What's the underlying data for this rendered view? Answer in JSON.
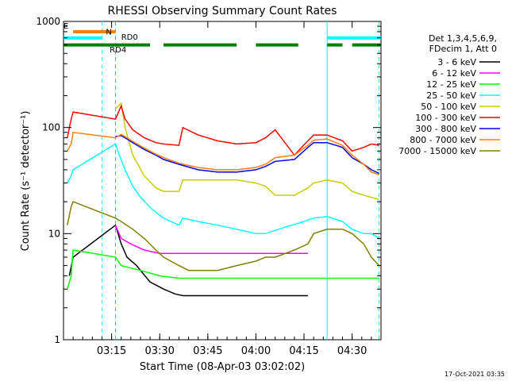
{
  "chart_data": {
    "type": "line",
    "title": "RHESSI Observing Summary Count Rates",
    "xlabel": "Start Time (08-Apr-03 03:02:02)",
    "ylabel": "Count Rate (s⁻¹ detector⁻¹)",
    "yscale": "log",
    "ylim": [
      1,
      1000
    ],
    "xlim_minutes": [
      3.0,
      4.65
    ],
    "x_ticks": [
      {
        "label": "03:15",
        "value": 3.25
      },
      {
        "label": "03:30",
        "value": 3.5
      },
      {
        "label": "03:45",
        "value": 3.75
      },
      {
        "label": "04:00",
        "value": 4.0
      },
      {
        "label": "04:15",
        "value": 4.25
      },
      {
        "label": "04:30",
        "value": 4.5
      }
    ],
    "y_ticks": [
      {
        "label": "1",
        "value": 1
      },
      {
        "label": "10",
        "value": 10
      },
      {
        "label": "100",
        "value": 100
      },
      {
        "label": "1000",
        "value": 1000
      }
    ],
    "legend_header": [
      "Det 1,3,4,5,6,9,",
      "FDecim 1, Att 0"
    ],
    "legend_position": "right",
    "series": [
      {
        "name": "3 - 6 keV",
        "color": "#000000",
        "x": [
          3.03,
          3.05,
          3.27,
          3.3,
          3.33,
          3.38,
          3.45,
          3.52,
          3.58,
          3.62,
          3.7,
          3.72,
          3.8,
          3.86,
          3.92,
          4.0,
          4.08,
          4.15,
          4.2,
          4.27
        ],
        "values": [
          4,
          6,
          12,
          8,
          6,
          5,
          3.5,
          3.0,
          2.7,
          2.6,
          2.6,
          2.6,
          2.6,
          2.6,
          2.6,
          2.6,
          2.6,
          2.6,
          2.6,
          2.6
        ]
      },
      {
        "name": "6 - 12 keV",
        "color": "#ff00ff",
        "x": [
          3.27,
          3.3,
          3.35,
          3.42,
          3.5,
          3.58,
          3.65,
          3.72,
          3.8,
          3.9,
          4.0,
          4.1,
          4.2,
          4.27
        ],
        "values": [
          12,
          9,
          8,
          7,
          6.5,
          6.5,
          6.5,
          6.5,
          6.5,
          6.5,
          6.5,
          6.5,
          6.5,
          6.5
        ]
      },
      {
        "name": "12 - 25 keV",
        "color": "#00ff00",
        "x": [
          3.02,
          3.04,
          3.05,
          3.27,
          3.3,
          3.4,
          3.5,
          3.6,
          3.7,
          3.8,
          3.9,
          4.0,
          4.1,
          4.2,
          4.3,
          4.4,
          4.45,
          4.47,
          4.5,
          4.52,
          4.56,
          4.6,
          4.64
        ],
        "values": [
          3,
          4,
          7,
          6,
          5,
          4.5,
          4,
          3.8,
          3.8,
          3.8,
          3.8,
          3.8,
          3.8,
          3.8,
          3.8,
          3.8,
          3.8,
          3.8,
          3.8,
          3.8,
          3.8,
          3.8,
          3.8
        ]
      },
      {
        "name": "25 - 50 keV",
        "color": "#00ffff",
        "x": [
          3.02,
          3.04,
          3.05,
          3.27,
          3.29,
          3.32,
          3.36,
          3.4,
          3.46,
          3.52,
          3.6,
          3.62,
          3.7,
          3.8,
          3.9,
          4.0,
          4.05,
          4.15,
          4.22,
          4.3,
          4.37,
          4.45,
          4.5,
          4.56,
          4.6,
          4.64
        ],
        "values": [
          30,
          35,
          40,
          70,
          55,
          40,
          28,
          22,
          17,
          14,
          12,
          14,
          13,
          12,
          11,
          10,
          10,
          11.5,
          12.5,
          14,
          14.5,
          13,
          11,
          10,
          10,
          9
        ]
      },
      {
        "name": "50 - 100 keV",
        "color": "#cccc00",
        "x": [
          3.27,
          3.3,
          3.32,
          3.36,
          3.42,
          3.48,
          3.52,
          3.6,
          3.62,
          3.7,
          3.8,
          3.9,
          4.0,
          4.05,
          4.1,
          4.2,
          4.27,
          4.3,
          4.37,
          4.45,
          4.5,
          4.56,
          4.6,
          4.64
        ],
        "values": [
          150,
          170,
          100,
          55,
          35,
          27,
          25,
          25,
          32,
          32,
          32,
          32,
          30,
          28,
          23,
          23,
          27,
          30,
          32,
          30,
          25,
          23,
          22,
          21
        ]
      },
      {
        "name": "100 - 300 keV",
        "color": "#ff0000",
        "x": [
          3.02,
          3.04,
          3.05,
          3.27,
          3.3,
          3.32,
          3.36,
          3.42,
          3.48,
          3.52,
          3.6,
          3.62,
          3.7,
          3.8,
          3.9,
          4.0,
          4.05,
          4.1,
          4.2,
          4.27,
          4.3,
          4.37,
          4.45,
          4.5,
          4.56,
          4.6,
          4.64
        ],
        "values": [
          80,
          120,
          140,
          120,
          160,
          120,
          95,
          80,
          72,
          70,
          68,
          100,
          85,
          75,
          70,
          72,
          80,
          95,
          55,
          75,
          85,
          85,
          75,
          60,
          65,
          70,
          68
        ]
      },
      {
        "name": "300 - 800 keV",
        "color": "#0000ff",
        "x": [
          3.27,
          3.3,
          3.32,
          3.36,
          3.42,
          3.48,
          3.52,
          3.6,
          3.7,
          3.8,
          3.9,
          4.0,
          4.05,
          4.1,
          4.2,
          4.27,
          4.3,
          4.37,
          4.45,
          4.5,
          4.56,
          4.6,
          4.64
        ],
        "values": [
          82,
          84,
          80,
          72,
          62,
          55,
          50,
          45,
          40,
          38,
          38,
          40,
          43,
          48,
          50,
          65,
          72,
          72,
          65,
          52,
          45,
          40,
          37
        ]
      },
      {
        "name": "800 - 7000 keV",
        "color": "#ff8000",
        "x": [
          3.02,
          3.04,
          3.05,
          3.27,
          3.3,
          3.32,
          3.36,
          3.42,
          3.48,
          3.52,
          3.6,
          3.7,
          3.8,
          3.9,
          4.0,
          4.05,
          4.1,
          4.2,
          4.27,
          4.3,
          4.37,
          4.45,
          4.5,
          4.56,
          4.6,
          4.64
        ],
        "values": [
          60,
          70,
          90,
          80,
          86,
          82,
          74,
          64,
          56,
          52,
          46,
          42,
          40,
          40,
          42,
          45,
          52,
          55,
          68,
          76,
          78,
          68,
          55,
          45,
          38,
          36
        ]
      },
      {
        "name": "7000 - 15000 keV",
        "color": "#808000",
        "x": [
          3.02,
          3.04,
          3.05,
          3.27,
          3.3,
          3.36,
          3.42,
          3.48,
          3.52,
          3.6,
          3.65,
          3.72,
          3.8,
          3.9,
          4.0,
          4.05,
          4.1,
          4.2,
          4.27,
          4.3,
          4.37,
          4.45,
          4.5,
          4.56,
          4.6,
          4.64
        ],
        "values": [
          12,
          18,
          20,
          14,
          13,
          11,
          9,
          7,
          6,
          5,
          4.5,
          4.5,
          4.5,
          5,
          5.5,
          6,
          6,
          7,
          8,
          10,
          11,
          11,
          10,
          8,
          6,
          5
        ]
      }
    ],
    "state_bars": [
      {
        "name": "Att",
        "color": "#ff8000",
        "segments": [
          [
            3.05,
            3.27
          ]
        ],
        "level": 800
      },
      {
        "name": "N",
        "color": "#00ffff",
        "label": "N",
        "segments": [
          [
            3.0,
            3.2
          ],
          [
            4.37,
            4.65
          ]
        ],
        "level": 700
      },
      {
        "name": "RD",
        "color": "#008000",
        "segments": [
          [
            3.0,
            3.27
          ],
          [
            3.27,
            3.45
          ],
          [
            3.52,
            3.9
          ],
          [
            4.0,
            4.22
          ],
          [
            4.37,
            4.45
          ],
          [
            4.5,
            4.65
          ]
        ],
        "level": 600
      }
    ],
    "state_labels": [
      {
        "text": "RD4",
        "x": 3.24,
        "y": 510
      },
      {
        "text": "RD0",
        "x": 3.3,
        "y": 670
      },
      {
        "text": "E",
        "x": 3.0,
        "y": 860
      }
    ],
    "vlines": [
      {
        "x": 3.27,
        "color": "#ff8000",
        "dashed": true
      },
      {
        "x": 3.2,
        "color": "#00ffff",
        "dashed": true
      },
      {
        "x": 4.37,
        "color": "#00ffff",
        "dashed": false
      },
      {
        "x": 4.64,
        "color": "#00ffff",
        "dashed": true
      }
    ],
    "timestamp": "17-Oct-2021 03:35"
  }
}
